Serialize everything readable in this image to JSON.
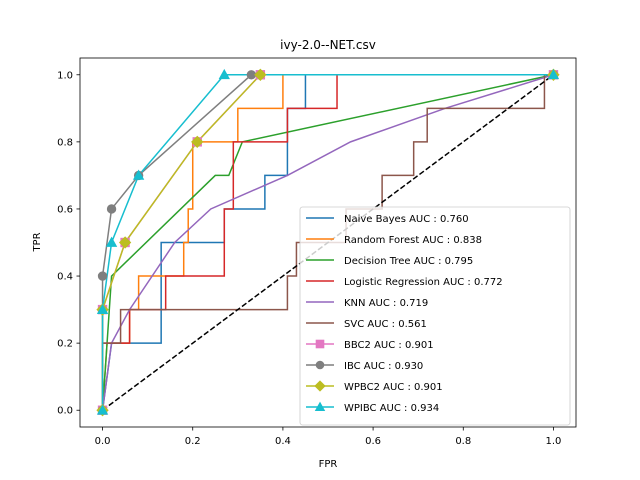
{
  "chart_data": {
    "type": "line",
    "title": "ivy-2.0--NET.csv",
    "xlabel": "FPR",
    "ylabel": "TPR",
    "xlim": [
      -0.05,
      1.05
    ],
    "ylim": [
      -0.05,
      1.05
    ],
    "xticks": [
      "0.0",
      "0.2",
      "0.4",
      "0.6",
      "0.8",
      "1.0"
    ],
    "yticks": [
      "0.0",
      "0.2",
      "0.4",
      "0.6",
      "0.8",
      "1.0"
    ],
    "grid": false,
    "legend_position": "lower-right",
    "diagonal": {
      "style": "dashed",
      "color": "#000000",
      "x": [
        0,
        1
      ],
      "y": [
        0,
        1
      ]
    },
    "series": [
      {
        "name": "Naive Bayes AUC : 0.760",
        "color": "#1f77b4",
        "marker": "none",
        "step": true,
        "x": [
          0,
          0.02,
          0.06,
          0.06,
          0.13,
          0.13,
          0.19,
          0.19,
          0.27,
          0.27,
          0.36,
          0.36,
          0.41,
          0.41,
          0.45,
          0.45,
          1.0
        ],
        "y": [
          0,
          0.2,
          0.2,
          0.2,
          0.2,
          0.5,
          0.5,
          0.5,
          0.5,
          0.6,
          0.6,
          0.7,
          0.7,
          0.9,
          0.9,
          1.0,
          1.0
        ]
      },
      {
        "name": "Random Forest AUC : 0.838",
        "color": "#ff7f0e",
        "marker": "none",
        "step": true,
        "x": [
          0,
          0.01,
          0.06,
          0.06,
          0.08,
          0.08,
          0.18,
          0.18,
          0.19,
          0.19,
          0.2,
          0.2,
          0.3,
          0.3,
          0.4,
          0.4,
          1.0
        ],
        "y": [
          0,
          0.2,
          0.2,
          0.3,
          0.3,
          0.4,
          0.4,
          0.5,
          0.5,
          0.6,
          0.6,
          0.8,
          0.8,
          0.9,
          0.9,
          1.0,
          1.0
        ]
      },
      {
        "name": "Decision Tree AUC : 0.795",
        "color": "#2ca02c",
        "marker": "none",
        "step": false,
        "x": [
          0,
          0.02,
          0.25,
          0.28,
          0.31,
          1.0
        ],
        "y": [
          0,
          0.4,
          0.7,
          0.7,
          0.8,
          1.0
        ]
      },
      {
        "name": "Logistic Regression AUC : 0.772",
        "color": "#d62728",
        "marker": "none",
        "step": true,
        "x": [
          0,
          0.0,
          0.06,
          0.06,
          0.14,
          0.14,
          0.27,
          0.27,
          0.29,
          0.29,
          0.41,
          0.41,
          0.52,
          0.52,
          1.0
        ],
        "y": [
          0,
          0.2,
          0.2,
          0.3,
          0.3,
          0.4,
          0.4,
          0.6,
          0.6,
          0.8,
          0.8,
          0.9,
          0.9,
          1.0,
          1.0
        ]
      },
      {
        "name": "KNN AUC : 0.719",
        "color": "#9467bd",
        "marker": "none",
        "step": false,
        "x": [
          0,
          0.02,
          0.06,
          0.16,
          0.24,
          0.41,
          0.55,
          0.76,
          1.0
        ],
        "y": [
          0,
          0.2,
          0.3,
          0.5,
          0.6,
          0.7,
          0.8,
          0.9,
          1.0
        ]
      },
      {
        "name": "SVC AUC : 0.561",
        "color": "#8c564b",
        "marker": "none",
        "step": true,
        "x": [
          0,
          0.0,
          0.04,
          0.04,
          0.41,
          0.41,
          0.43,
          0.43,
          0.54,
          0.54,
          0.62,
          0.62,
          0.69,
          0.69,
          0.72,
          0.72,
          0.98,
          0.98,
          1.0
        ],
        "y": [
          0,
          0.2,
          0.2,
          0.3,
          0.3,
          0.4,
          0.4,
          0.5,
          0.5,
          0.6,
          0.6,
          0.7,
          0.7,
          0.8,
          0.8,
          0.9,
          0.9,
          1.0,
          1.0
        ]
      },
      {
        "name": "BBC2 AUC : 0.901",
        "color": "#e377c2",
        "marker": "square",
        "step": false,
        "x": [
          0,
          0.0,
          0.05,
          0.21,
          0.35,
          1.0
        ],
        "y": [
          0,
          0.3,
          0.5,
          0.8,
          1.0,
          1.0
        ]
      },
      {
        "name": "IBC AUC : 0.930",
        "color": "#7f7f7f",
        "marker": "circle",
        "step": false,
        "x": [
          0,
          0.0,
          0.02,
          0.08,
          0.33,
          1.0
        ],
        "y": [
          0,
          0.4,
          0.6,
          0.7,
          1.0,
          1.0
        ]
      },
      {
        "name": "WPBC2 AUC : 0.901",
        "color": "#bcbd22",
        "marker": "diamond",
        "step": false,
        "x": [
          0,
          0.0,
          0.05,
          0.21,
          0.35,
          1.0
        ],
        "y": [
          0,
          0.3,
          0.5,
          0.8,
          1.0,
          1.0
        ]
      },
      {
        "name": "WPIBC AUC : 0.934",
        "color": "#17becf",
        "marker": "triangle",
        "step": false,
        "x": [
          0,
          0.0,
          0.02,
          0.08,
          0.27,
          1.0
        ],
        "y": [
          0,
          0.3,
          0.5,
          0.7,
          1.0,
          1.0
        ]
      }
    ]
  }
}
